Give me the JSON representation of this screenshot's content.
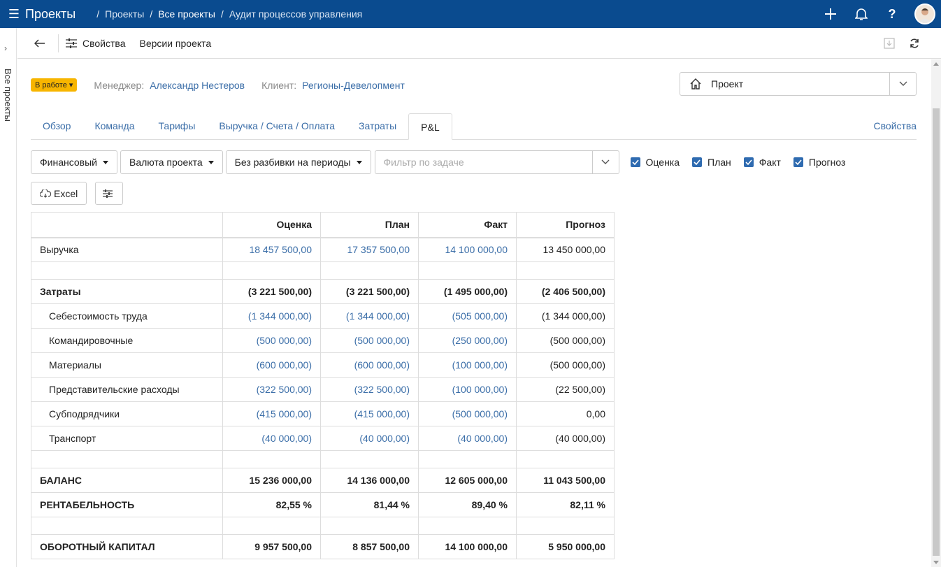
{
  "topbar": {
    "app_title": "Проекты",
    "breadcrumbs": [
      "Проекты",
      "Все проекты",
      "Аудит процессов управления"
    ],
    "icons": [
      "menu-icon",
      "plus-icon",
      "bell-icon",
      "help-icon",
      "avatar"
    ]
  },
  "rail": {
    "label": "Все проекты"
  },
  "toolbar": {
    "properties_label": "Свойства",
    "versions_label": "Версии проекта"
  },
  "header": {
    "status": "В работе",
    "manager_label": "Менеджер:",
    "manager": "Александр Нестеров",
    "client_label": "Клиент:",
    "client": "Регионы-Девелопмент",
    "project_type": "Проект"
  },
  "tabs": [
    {
      "label": "Обзор",
      "active": false
    },
    {
      "label": "Команда",
      "active": false
    },
    {
      "label": "Тарифы",
      "active": false
    },
    {
      "label": "Выручка / Счета / Оплата",
      "active": false
    },
    {
      "label": "Затраты",
      "active": false
    },
    {
      "label": "P&L",
      "active": true
    }
  ],
  "tab_properties": "Свойства",
  "filters": {
    "report_type": "Финансовый",
    "currency": "Валюта проекта",
    "period": "Без разбивки на периоды",
    "task_filter_placeholder": "Фильтр по задаче",
    "checks": [
      "Оценка",
      "План",
      "Факт",
      "Прогноз"
    ]
  },
  "actions": {
    "excel_label": "Excel"
  },
  "table": {
    "columns": [
      "Оценка",
      "План",
      "Факт",
      "Прогноз"
    ],
    "rows": {
      "revenue": {
        "label": "Выручка",
        "values": [
          "18 457 500,00",
          "17 357 500,00",
          "14 100 000,00",
          "13 450 000,00"
        ]
      },
      "costs": {
        "label": "Затраты",
        "values": [
          "(3 221 500,00)",
          "(3 221 500,00)",
          "(1 495 000,00)",
          "(2 406 500,00)"
        ]
      },
      "labor": {
        "label": "Себестоимость труда",
        "values": [
          "(1 344 000,00)",
          "(1 344 000,00)",
          "(505 000,00)",
          "(1 344 000,00)"
        ]
      },
      "travel": {
        "label": "Командировочные",
        "values": [
          "(500 000,00)",
          "(500 000,00)",
          "(250 000,00)",
          "(500 000,00)"
        ]
      },
      "materials": {
        "label": "Материалы",
        "values": [
          "(600 000,00)",
          "(600 000,00)",
          "(100 000,00)",
          "(500 000,00)"
        ]
      },
      "entertainment": {
        "label": "Представительские расходы",
        "values": [
          "(322 500,00)",
          "(322 500,00)",
          "(100 000,00)",
          "(22 500,00)"
        ]
      },
      "subcontractors": {
        "label": "Субподрядчики",
        "values": [
          "(415 000,00)",
          "(415 000,00)",
          "(500 000,00)",
          "0,00"
        ]
      },
      "transport": {
        "label": "Транспорт",
        "values": [
          "(40 000,00)",
          "(40 000,00)",
          "(40 000,00)",
          "(40 000,00)"
        ]
      },
      "balance": {
        "label": "БАЛАНС",
        "values": [
          "15 236 000,00",
          "14 136 000,00",
          "12 605 000,00",
          "11 043 500,00"
        ]
      },
      "profitability": {
        "label": "РЕНТАБЕЛЬНОСТЬ",
        "values": [
          "82,55 %",
          "81,44 %",
          "89,40 %",
          "82,11 %"
        ]
      },
      "working_capital": {
        "label": "ОБОРОТНЫЙ КАПИТАЛ",
        "values": [
          "9 957 500,00",
          "8 857 500,00",
          "14 100 000,00",
          "5 950 000,00"
        ]
      }
    }
  },
  "colors": {
    "topbar": "#0a4b8f",
    "link": "#3b6ea8",
    "status_badge": "#f7b500",
    "checkbox": "#2f6bb0"
  }
}
